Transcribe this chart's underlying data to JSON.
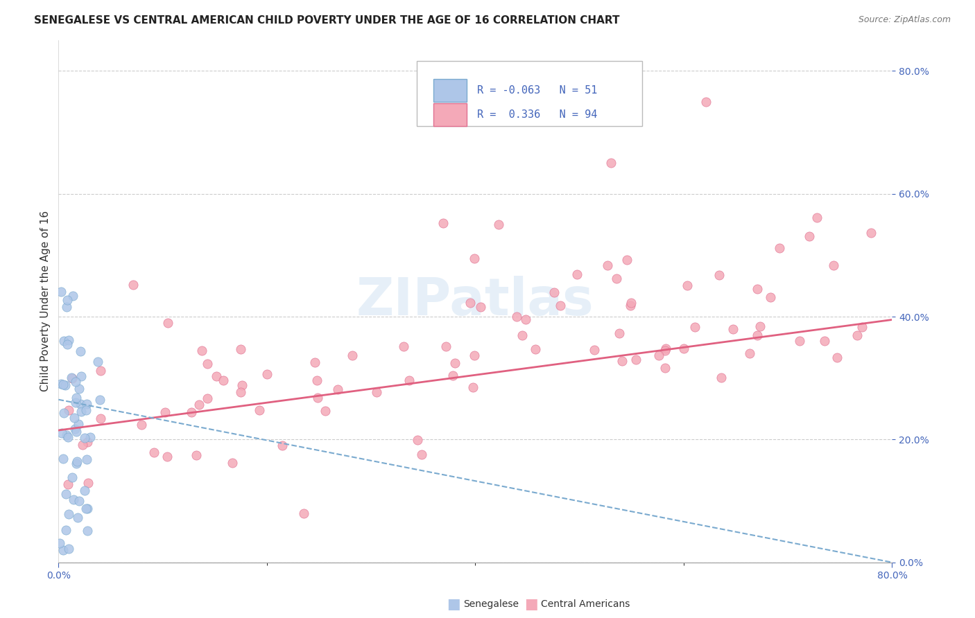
{
  "title": "SENEGALESE VS CENTRAL AMERICAN CHILD POVERTY UNDER THE AGE OF 16 CORRELATION CHART",
  "source": "Source: ZipAtlas.com",
  "ylabel": "Child Poverty Under the Age of 16",
  "legend_1": {
    "label": "Senegalese",
    "R": -0.063,
    "N": 51,
    "color": "#aec6e8",
    "edge": "#7aaacf"
  },
  "legend_2": {
    "label": "Central Americans",
    "R": 0.336,
    "N": 94,
    "color": "#f4a9b8",
    "edge": "#e07090"
  },
  "watermark": "ZIPatlas",
  "background_color": "#ffffff",
  "xmin": 0.0,
  "xmax": 0.8,
  "ymin": 0.0,
  "ymax": 0.85,
  "sen_trend_color": "#7aaacf",
  "ca_trend_color": "#e06080",
  "grid_color": "#cccccc",
  "tick_color": "#4466bb",
  "title_color": "#222222",
  "source_color": "#777777"
}
